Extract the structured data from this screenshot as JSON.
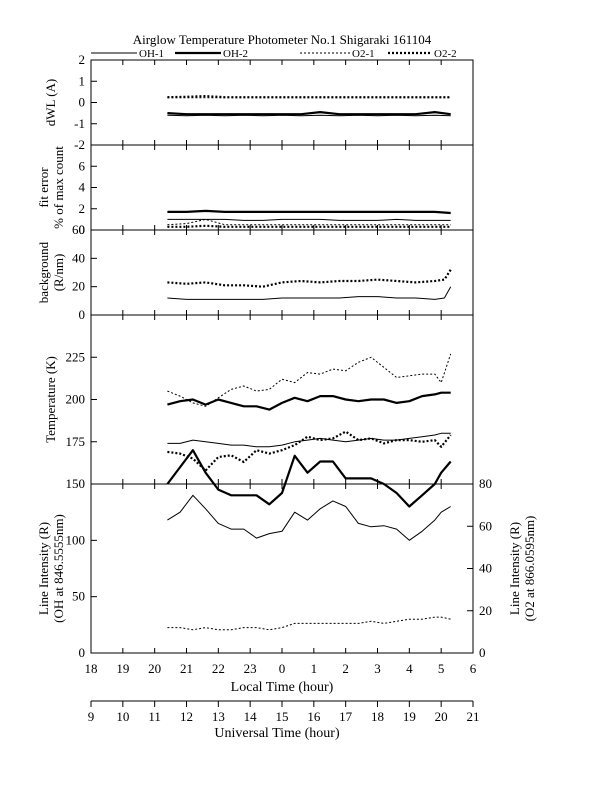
{
  "figure": {
    "title": "Airglow Temperature Photometer No.1  Shigaraki   161104",
    "legend": [
      {
        "label": "OH-1",
        "style": "thin-solid"
      },
      {
        "label": "OH-2",
        "style": "thick-solid"
      },
      {
        "label": "O2-1",
        "style": "thin-dotted"
      },
      {
        "label": "O2-2",
        "style": "thick-dotted"
      }
    ],
    "local_axis": {
      "label": "Local Time (hour)",
      "min": 18,
      "max": 30,
      "ticks": [
        "18",
        "19",
        "20",
        "21",
        "22",
        "23",
        "0",
        "1",
        "2",
        "3",
        "4",
        "5",
        "6"
      ]
    },
    "ut_axis": {
      "label": "Universal Time (hour)",
      "min": 9,
      "max": 21,
      "ticks": [
        "9",
        "10",
        "11",
        "12",
        "13",
        "14",
        "15",
        "16",
        "17",
        "18",
        "19",
        "20",
        "21"
      ]
    }
  },
  "chart_data": [
    {
      "type": "line",
      "panel": "dWL",
      "ylabel": "dWL (A)",
      "ylim": [
        -2,
        2
      ],
      "yticks": [
        "2",
        "1",
        "0",
        "-1",
        "-2"
      ],
      "x": [
        20.4,
        21,
        21.6,
        22.2,
        22.8,
        23.4,
        24,
        24.6,
        25.2,
        25.8,
        26.4,
        27,
        27.6,
        28.2,
        28.8,
        29.3
      ],
      "series": [
        {
          "name": "OH-1",
          "values": [
            -0.6,
            -0.62,
            -0.6,
            -0.62,
            -0.6,
            -0.62,
            -0.6,
            -0.62,
            -0.6,
            -0.62,
            -0.6,
            -0.62,
            -0.6,
            -0.62,
            -0.6,
            -0.62
          ]
        },
        {
          "name": "OH-2",
          "values": [
            -0.5,
            -0.55,
            -0.55,
            -0.55,
            -0.55,
            -0.55,
            -0.55,
            -0.55,
            -0.45,
            -0.55,
            -0.55,
            -0.55,
            -0.55,
            -0.55,
            -0.45,
            -0.55
          ]
        },
        {
          "name": "O2-1",
          "values": [
            0.22,
            0.22,
            0.22,
            0.22,
            0.22,
            0.22,
            0.22,
            0.22,
            0.22,
            0.22,
            0.22,
            0.22,
            0.22,
            0.22,
            0.22,
            0.22
          ]
        },
        {
          "name": "O2-2",
          "values": [
            0.25,
            0.27,
            0.3,
            0.25,
            0.25,
            0.25,
            0.25,
            0.25,
            0.25,
            0.25,
            0.25,
            0.25,
            0.25,
            0.25,
            0.25,
            0.25
          ]
        }
      ]
    },
    {
      "type": "line",
      "panel": "fit error",
      "ylabel": "fit error",
      "ylabel2": "% of max count",
      "ylim": [
        0,
        8
      ],
      "yticks": [
        "6",
        "4",
        "2",
        "0"
      ],
      "x": [
        20.4,
        21,
        21.6,
        22.2,
        22.8,
        23.4,
        24,
        24.6,
        25.2,
        25.8,
        26.4,
        27,
        27.6,
        28.2,
        28.8,
        29.3
      ],
      "series": [
        {
          "name": "OH-1",
          "values": [
            1.0,
            1.0,
            1.0,
            1.0,
            0.9,
            0.9,
            1.0,
            1.0,
            1.0,
            0.9,
            0.9,
            0.9,
            1.0,
            0.9,
            0.9,
            0.9
          ]
        },
        {
          "name": "OH-2",
          "values": [
            1.7,
            1.7,
            1.8,
            1.7,
            1.7,
            1.7,
            1.7,
            1.7,
            1.7,
            1.7,
            1.7,
            1.7,
            1.7,
            1.7,
            1.7,
            1.6
          ]
        },
        {
          "name": "O2-1",
          "values": [
            0.5,
            0.6,
            1.0,
            0.5,
            0.5,
            0.5,
            0.5,
            0.5,
            0.5,
            0.5,
            0.5,
            0.5,
            0.5,
            0.5,
            0.5,
            0.5
          ]
        },
        {
          "name": "O2-2",
          "values": [
            0.3,
            0.3,
            0.4,
            0.3,
            0.3,
            0.3,
            0.3,
            0.3,
            0.3,
            0.3,
            0.3,
            0.3,
            0.3,
            0.3,
            0.3,
            0.3
          ]
        }
      ]
    },
    {
      "type": "line",
      "panel": "background",
      "ylabel": "background",
      "ylabel2": "(R/nm)",
      "ylim": [
        0,
        60
      ],
      "yticks": [
        "60",
        "40",
        "20",
        "0"
      ],
      "x": [
        20.4,
        21,
        21.6,
        22.2,
        22.8,
        23.4,
        24,
        24.6,
        25.2,
        25.8,
        26.4,
        27,
        27.6,
        28.2,
        28.8,
        29.1,
        29.3
      ],
      "series": [
        {
          "name": "OH-1",
          "values": [
            12,
            11,
            11,
            11,
            11,
            11,
            12,
            12,
            12,
            12,
            13,
            13,
            12,
            12,
            11,
            12,
            20
          ]
        },
        {
          "name": "O2-2",
          "values": [
            23,
            22,
            23,
            21,
            21,
            20,
            23,
            24,
            23,
            24,
            24,
            25,
            24,
            23,
            24,
            25,
            32
          ]
        }
      ]
    },
    {
      "type": "line",
      "panel": "temperature",
      "ylabel": "Temperature (K)",
      "ylim": [
        150,
        250
      ],
      "yticks": [
        "225",
        "200",
        "175"
      ],
      "x": [
        20.4,
        20.8,
        21.2,
        21.6,
        22.0,
        22.4,
        22.8,
        23.2,
        23.6,
        24.0,
        24.4,
        24.8,
        25.2,
        25.6,
        26.0,
        26.4,
        26.8,
        27.2,
        27.6,
        28.0,
        28.4,
        28.8,
        29.0,
        29.3
      ],
      "series": [
        {
          "name": "OH-1",
          "values": [
            174,
            174,
            176,
            175,
            174,
            173,
            173,
            172,
            172,
            173,
            175,
            176,
            177,
            176,
            175,
            176,
            177,
            176,
            176,
            177,
            178,
            179,
            180,
            180
          ]
        },
        {
          "name": "OH-2",
          "values": [
            197,
            199,
            200,
            197,
            200,
            198,
            196,
            196,
            194,
            198,
            201,
            199,
            202,
            202,
            200,
            199,
            200,
            200,
            198,
            199,
            202,
            203,
            204,
            204
          ]
        },
        {
          "name": "O2-1",
          "values": [
            205,
            202,
            198,
            196,
            201,
            206,
            208,
            205,
            206,
            212,
            210,
            216,
            215,
            218,
            217,
            222,
            225,
            219,
            213,
            214,
            215,
            215,
            210,
            227
          ]
        },
        {
          "name": "O2-2",
          "values": [
            169,
            168,
            165,
            158,
            166,
            167,
            163,
            170,
            168,
            170,
            173,
            178,
            176,
            177,
            181,
            176,
            177,
            174,
            176,
            176,
            175,
            176,
            172,
            179
          ]
        }
      ]
    },
    {
      "type": "line",
      "panel": "line intensity",
      "ylabel": "Line Intensity (R)",
      "ylabel2": "(OH at 846.5555nm)",
      "ylim": [
        0,
        150
      ],
      "yticks": [
        "150",
        "100",
        "50",
        "0"
      ],
      "right_ylabel": "Line Intensity (R)",
      "right_ylabel2": "(O2 at 866.0595nm)",
      "right_ylim": [
        0,
        80
      ],
      "right_yticks": [
        "80",
        "60",
        "40",
        "20",
        "0"
      ],
      "x": [
        20.4,
        20.8,
        21.2,
        21.6,
        22.0,
        22.4,
        22.8,
        23.2,
        23.6,
        24.0,
        24.4,
        24.8,
        25.2,
        25.6,
        26.0,
        26.4,
        26.8,
        27.2,
        27.6,
        28.0,
        28.4,
        28.8,
        29.0,
        29.3
      ],
      "series": [
        {
          "name": "OH-1",
          "values": [
            118,
            125,
            140,
            128,
            115,
            110,
            110,
            102,
            106,
            108,
            125,
            118,
            128,
            135,
            130,
            115,
            112,
            113,
            110,
            100,
            108,
            118,
            125,
            130
          ]
        },
        {
          "name": "OH-2",
          "values": [
            150,
            165,
            180,
            160,
            145,
            140,
            140,
            140,
            132,
            142,
            175,
            160,
            170,
            170,
            155,
            155,
            155,
            150,
            142,
            130,
            140,
            150,
            160,
            170
          ]
        },
        {
          "name": "O2-1",
          "values": [
            12,
            12,
            11,
            12,
            11,
            11,
            12,
            12,
            11,
            12,
            14,
            14,
            14,
            14,
            14,
            14,
            15,
            14,
            15,
            16,
            16,
            17,
            17,
            16
          ]
        }
      ]
    }
  ]
}
